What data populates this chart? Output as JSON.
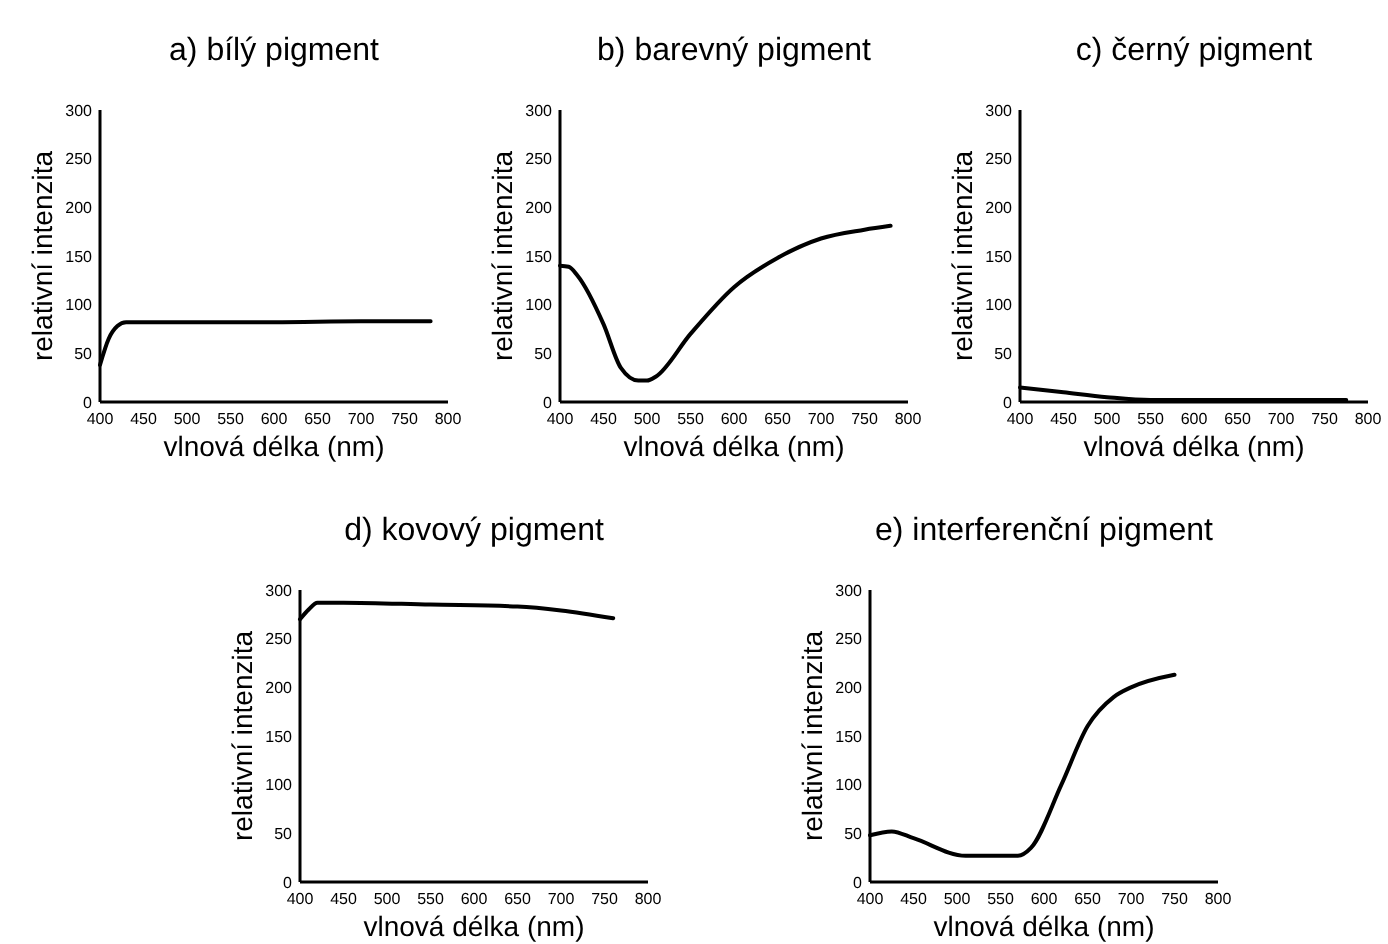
{
  "chart_data": [
    {
      "type": "line",
      "title": "a) bílý pigment",
      "xlabel": "vlnová délka (nm)",
      "ylabel": "relativní intenzita",
      "x": [
        400,
        410,
        420,
        430,
        500,
        600,
        700,
        780
      ],
      "series": [
        {
          "color": "#000000",
          "values": [
            38,
            65,
            78,
            82,
            82,
            82,
            83,
            83
          ]
        }
      ],
      "xlim": [
        400,
        800
      ],
      "ylim": [
        0,
        300
      ],
      "xticks": [
        400,
        450,
        500,
        550,
        600,
        650,
        700,
        750,
        800
      ],
      "yticks": [
        0,
        50,
        100,
        150,
        200,
        250,
        300
      ]
    },
    {
      "type": "line",
      "title": "b) barevný pigment",
      "xlabel": "vlnová délka (nm)",
      "ylabel": "relativní intenzita",
      "x": [
        400,
        410,
        420,
        450,
        470,
        490,
        500,
        510,
        550,
        600,
        650,
        700,
        750,
        780
      ],
      "series": [
        {
          "color": "#000000",
          "values": [
            140,
            139,
            130,
            80,
            35,
            22,
            22,
            26,
            70,
            118,
            148,
            168,
            177,
            181
          ]
        }
      ],
      "xlim": [
        400,
        800
      ],
      "ylim": [
        0,
        300
      ],
      "xticks": [
        400,
        450,
        500,
        550,
        600,
        650,
        700,
        750,
        800
      ],
      "yticks": [
        0,
        50,
        100,
        150,
        200,
        250,
        300
      ]
    },
    {
      "type": "line",
      "title": "c) černý pigment",
      "xlabel": "vlnová délka (nm)",
      "ylabel": "relativní intenzita",
      "x": [
        400,
        450,
        500,
        550,
        600,
        700,
        775
      ],
      "series": [
        {
          "color": "#000000",
          "values": [
            15,
            10,
            5,
            2,
            2,
            2,
            2
          ]
        }
      ],
      "xlim": [
        400,
        800
      ],
      "ylim": [
        0,
        300
      ],
      "xticks": [
        400,
        450,
        500,
        550,
        600,
        650,
        700,
        750,
        800
      ],
      "yticks": [
        0,
        50,
        100,
        150,
        200,
        250,
        300
      ]
    },
    {
      "type": "line",
      "title": "d) kovový pigment",
      "xlabel": "vlnová délka (nm)",
      "ylabel": "relativní intenzita",
      "x": [
        400,
        410,
        420,
        450,
        550,
        650,
        700,
        760
      ],
      "series": [
        {
          "color": "#000000",
          "values": [
            270,
            280,
            287,
            287,
            285,
            283,
            279,
            271
          ]
        }
      ],
      "xlim": [
        400,
        800
      ],
      "ylim": [
        0,
        300
      ],
      "xticks": [
        400,
        450,
        500,
        550,
        600,
        650,
        700,
        750,
        800
      ],
      "yticks": [
        0,
        50,
        100,
        150,
        200,
        250,
        300
      ]
    },
    {
      "type": "line",
      "title": "e) interferenční pigment",
      "xlabel": "vlnová délka (nm)",
      "ylabel": "relativní intenzita",
      "x": [
        400,
        425,
        450,
        510,
        570,
        585,
        620,
        650,
        680,
        700,
        750
      ],
      "series": [
        {
          "color": "#000000",
          "values": [
            48,
            52,
            45,
            27,
            27,
            35,
            100,
            160,
            190,
            200,
            213
          ]
        }
      ],
      "xlim": [
        400,
        800
      ],
      "ylim": [
        0,
        300
      ],
      "xticks": [
        400,
        450,
        500,
        550,
        600,
        650,
        700,
        750,
        800
      ],
      "yticks": [
        0,
        50,
        100,
        150,
        200,
        250,
        300
      ]
    }
  ]
}
